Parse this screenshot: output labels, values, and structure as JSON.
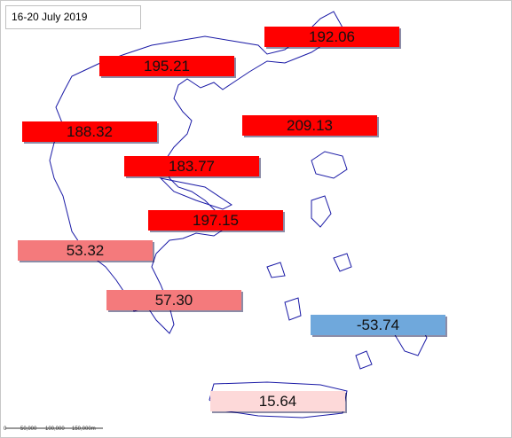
{
  "title": "16-20 July 2019",
  "labels": [
    {
      "text": "192.06",
      "color": "#ff0000"
    },
    {
      "text": "195.21",
      "color": "#ff0000"
    },
    {
      "text": "188.32",
      "color": "#ff0000"
    },
    {
      "text": "209.13",
      "color": "#ff0000"
    },
    {
      "text": "183.77",
      "color": "#ff0000"
    },
    {
      "text": "197.15",
      "color": "#ff0000"
    },
    {
      "text": "53.32",
      "color": "#f47a7c"
    },
    {
      "text": "57.30",
      "color": "#f47a7c"
    },
    {
      "text": "-53.74",
      "color": "#6fa8dc"
    },
    {
      "text": "15.64",
      "color": "#fdd9d9"
    }
  ],
  "scale_bar": {
    "labels": [
      "0",
      "50,000",
      "100,000",
      "150,000m"
    ]
  }
}
